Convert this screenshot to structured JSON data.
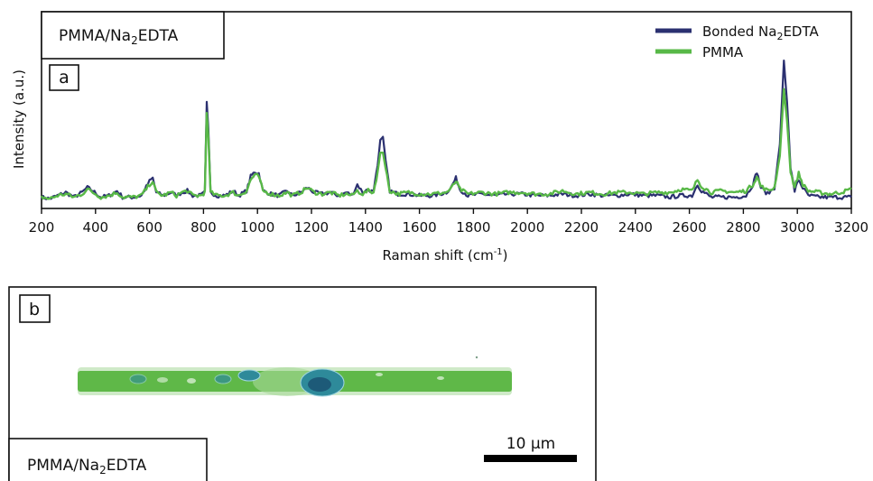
{
  "chart_data": {
    "type": "line",
    "panel_label": "a",
    "sample_label": {
      "base": "PMMA/Na",
      "sub": "2",
      "tail": "EDTA"
    },
    "xlabel": {
      "base": "Raman shift (cm",
      "sup": "-1",
      "tail": ")"
    },
    "ylabel": "Intensity (a.u.)",
    "xlim": [
      200,
      3200
    ],
    "ylim": [
      0,
      1
    ],
    "xticks": [
      200,
      400,
      600,
      800,
      1000,
      1200,
      1400,
      1600,
      1800,
      2000,
      2200,
      2400,
      2600,
      2800,
      3000,
      3200
    ],
    "grid": false,
    "legend_position": "top-right",
    "series": [
      {
        "name": {
          "base": "Bonded Na",
          "sub": "2",
          "tail": "EDTA"
        },
        "color": "#2b3070",
        "points": [
          [
            200,
            0.02
          ],
          [
            230,
            0.01
          ],
          [
            260,
            0.03
          ],
          [
            290,
            0.05
          ],
          [
            320,
            0.02
          ],
          [
            350,
            0.05
          ],
          [
            370,
            0.08
          ],
          [
            390,
            0.06
          ],
          [
            420,
            0.02
          ],
          [
            450,
            0.03
          ],
          [
            480,
            0.06
          ],
          [
            500,
            0.02
          ],
          [
            540,
            0.02
          ],
          [
            570,
            0.03
          ],
          [
            600,
            0.12
          ],
          [
            612,
            0.14
          ],
          [
            625,
            0.05
          ],
          [
            650,
            0.03
          ],
          [
            680,
            0.05
          ],
          [
            700,
            0.03
          ],
          [
            720,
            0.05
          ],
          [
            740,
            0.06
          ],
          [
            760,
            0.03
          ],
          [
            790,
            0.03
          ],
          [
            805,
            0.05
          ],
          [
            812,
            0.62
          ],
          [
            818,
            0.45
          ],
          [
            826,
            0.05
          ],
          [
            850,
            0.03
          ],
          [
            880,
            0.03
          ],
          [
            910,
            0.06
          ],
          [
            930,
            0.03
          ],
          [
            960,
            0.06
          ],
          [
            975,
            0.15
          ],
          [
            990,
            0.18
          ],
          [
            1005,
            0.17
          ],
          [
            1020,
            0.06
          ],
          [
            1050,
            0.04
          ],
          [
            1080,
            0.03
          ],
          [
            1110,
            0.06
          ],
          [
            1130,
            0.03
          ],
          [
            1160,
            0.05
          ],
          [
            1185,
            0.08
          ],
          [
            1210,
            0.05
          ],
          [
            1240,
            0.04
          ],
          [
            1270,
            0.05
          ],
          [
            1300,
            0.03
          ],
          [
            1330,
            0.05
          ],
          [
            1350,
            0.03
          ],
          [
            1370,
            0.1
          ],
          [
            1390,
            0.05
          ],
          [
            1410,
            0.07
          ],
          [
            1430,
            0.05
          ],
          [
            1445,
            0.22
          ],
          [
            1455,
            0.38
          ],
          [
            1465,
            0.4
          ],
          [
            1475,
            0.25
          ],
          [
            1490,
            0.06
          ],
          [
            1520,
            0.04
          ],
          [
            1560,
            0.04
          ],
          [
            1600,
            0.03
          ],
          [
            1650,
            0.03
          ],
          [
            1700,
            0.05
          ],
          [
            1720,
            0.09
          ],
          [
            1735,
            0.14
          ],
          [
            1750,
            0.07
          ],
          [
            1780,
            0.03
          ],
          [
            1830,
            0.04
          ],
          [
            1880,
            0.03
          ],
          [
            1930,
            0.04
          ],
          [
            1980,
            0.04
          ],
          [
            2030,
            0.03
          ],
          [
            2080,
            0.03
          ],
          [
            2130,
            0.04
          ],
          [
            2180,
            0.03
          ],
          [
            2230,
            0.04
          ],
          [
            2280,
            0.03
          ],
          [
            2330,
            0.03
          ],
          [
            2380,
            0.04
          ],
          [
            2430,
            0.03
          ],
          [
            2480,
            0.03
          ],
          [
            2530,
            0.02
          ],
          [
            2570,
            0.03
          ],
          [
            2610,
            0.03
          ],
          [
            2630,
            0.1
          ],
          [
            2645,
            0.06
          ],
          [
            2680,
            0.02
          ],
          [
            2720,
            0.02
          ],
          [
            2770,
            0.02
          ],
          [
            2810,
            0.03
          ],
          [
            2835,
            0.1
          ],
          [
            2850,
            0.18
          ],
          [
            2865,
            0.08
          ],
          [
            2890,
            0.04
          ],
          [
            2915,
            0.08
          ],
          [
            2935,
            0.35
          ],
          [
            2950,
            0.88
          ],
          [
            2962,
            0.62
          ],
          [
            2975,
            0.2
          ],
          [
            2990,
            0.06
          ],
          [
            3005,
            0.13
          ],
          [
            3020,
            0.08
          ],
          [
            3040,
            0.03
          ],
          [
            3080,
            0.02
          ],
          [
            3120,
            0.02
          ],
          [
            3160,
            0.02
          ],
          [
            3200,
            0.02
          ]
        ]
      },
      {
        "name": "PMMA",
        "color": "#58b847",
        "points": [
          [
            200,
            0.02
          ],
          [
            230,
            0.01
          ],
          [
            260,
            0.03
          ],
          [
            290,
            0.04
          ],
          [
            320,
            0.02
          ],
          [
            350,
            0.04
          ],
          [
            370,
            0.07
          ],
          [
            390,
            0.05
          ],
          [
            420,
            0.02
          ],
          [
            450,
            0.03
          ],
          [
            480,
            0.05
          ],
          [
            500,
            0.02
          ],
          [
            540,
            0.02
          ],
          [
            570,
            0.03
          ],
          [
            600,
            0.1
          ],
          [
            612,
            0.12
          ],
          [
            625,
            0.05
          ],
          [
            650,
            0.03
          ],
          [
            680,
            0.05
          ],
          [
            700,
            0.03
          ],
          [
            720,
            0.05
          ],
          [
            740,
            0.06
          ],
          [
            760,
            0.03
          ],
          [
            790,
            0.03
          ],
          [
            805,
            0.05
          ],
          [
            812,
            0.55
          ],
          [
            818,
            0.4
          ],
          [
            826,
            0.05
          ],
          [
            850,
            0.03
          ],
          [
            880,
            0.03
          ],
          [
            910,
            0.05
          ],
          [
            930,
            0.03
          ],
          [
            960,
            0.06
          ],
          [
            975,
            0.13
          ],
          [
            990,
            0.16
          ],
          [
            1005,
            0.15
          ],
          [
            1020,
            0.06
          ],
          [
            1050,
            0.04
          ],
          [
            1080,
            0.03
          ],
          [
            1110,
            0.05
          ],
          [
            1130,
            0.03
          ],
          [
            1160,
            0.05
          ],
          [
            1185,
            0.08
          ],
          [
            1210,
            0.05
          ],
          [
            1240,
            0.04
          ],
          [
            1270,
            0.05
          ],
          [
            1300,
            0.03
          ],
          [
            1330,
            0.04
          ],
          [
            1350,
            0.03
          ],
          [
            1370,
            0.06
          ],
          [
            1390,
            0.04
          ],
          [
            1410,
            0.06
          ],
          [
            1430,
            0.05
          ],
          [
            1445,
            0.18
          ],
          [
            1455,
            0.3
          ],
          [
            1465,
            0.3
          ],
          [
            1475,
            0.2
          ],
          [
            1490,
            0.06
          ],
          [
            1520,
            0.04
          ],
          [
            1560,
            0.05
          ],
          [
            1600,
            0.04
          ],
          [
            1650,
            0.04
          ],
          [
            1700,
            0.05
          ],
          [
            1720,
            0.08
          ],
          [
            1735,
            0.12
          ],
          [
            1750,
            0.07
          ],
          [
            1780,
            0.04
          ],
          [
            1830,
            0.05
          ],
          [
            1880,
            0.04
          ],
          [
            1930,
            0.05
          ],
          [
            1980,
            0.05
          ],
          [
            2030,
            0.04
          ],
          [
            2080,
            0.04
          ],
          [
            2130,
            0.06
          ],
          [
            2180,
            0.04
          ],
          [
            2230,
            0.05
          ],
          [
            2280,
            0.04
          ],
          [
            2330,
            0.05
          ],
          [
            2380,
            0.05
          ],
          [
            2430,
            0.04
          ],
          [
            2480,
            0.05
          ],
          [
            2530,
            0.05
          ],
          [
            2570,
            0.07
          ],
          [
            2610,
            0.06
          ],
          [
            2630,
            0.13
          ],
          [
            2645,
            0.09
          ],
          [
            2680,
            0.05
          ],
          [
            2720,
            0.06
          ],
          [
            2770,
            0.05
          ],
          [
            2810,
            0.06
          ],
          [
            2835,
            0.1
          ],
          [
            2850,
            0.15
          ],
          [
            2865,
            0.09
          ],
          [
            2890,
            0.06
          ],
          [
            2915,
            0.08
          ],
          [
            2935,
            0.28
          ],
          [
            2950,
            0.7
          ],
          [
            2962,
            0.5
          ],
          [
            2975,
            0.18
          ],
          [
            2990,
            0.08
          ],
          [
            3005,
            0.17
          ],
          [
            3020,
            0.1
          ],
          [
            3040,
            0.06
          ],
          [
            3080,
            0.05
          ],
          [
            3120,
            0.04
          ],
          [
            3160,
            0.05
          ],
          [
            3200,
            0.07
          ]
        ]
      }
    ]
  },
  "map_panel": {
    "panel_label": "b",
    "sample_label": {
      "base": "PMMA/Na",
      "sub": "2",
      "tail": "EDTA"
    },
    "scale_bar_label": "10 µm",
    "colors": {
      "fiber": "#5fb848",
      "fiber_edge": "#a8d89a",
      "particle": "#2e8a9a",
      "particle_core": "#1d5a78"
    }
  }
}
